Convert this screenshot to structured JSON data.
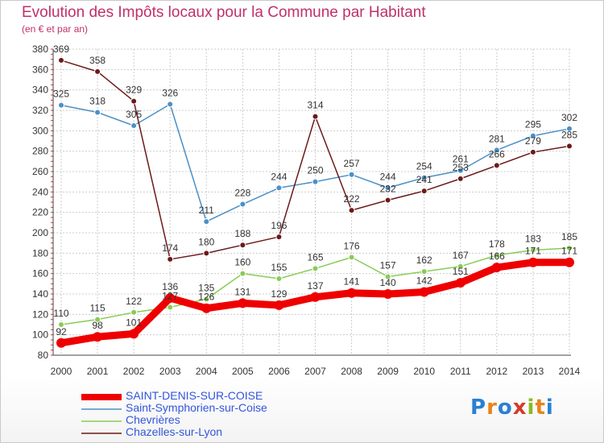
{
  "title": "Evolution des Impôts locaux pour la Commune par Habitant",
  "subtitle": "(en € et par an)",
  "logo": "Proxiti",
  "chart_data": {
    "type": "line",
    "x": [
      "2000",
      "2001",
      "2002",
      "2003",
      "2004",
      "2005",
      "2006",
      "2007",
      "2008",
      "2009",
      "2010",
      "2011",
      "2012",
      "2013",
      "2014"
    ],
    "ylim": [
      80,
      380
    ],
    "yticks": [
      80,
      100,
      120,
      140,
      160,
      180,
      200,
      220,
      240,
      260,
      280,
      300,
      320,
      340,
      360,
      380
    ],
    "grid": true,
    "legend_position": "bottom-left",
    "series": [
      {
        "name": "SAINT-DENIS-SUR-COISE",
        "color": "#ee0000",
        "values": [
          92,
          98,
          101,
          136,
          126,
          131,
          129,
          137,
          141,
          140,
          142,
          151,
          166,
          171,
          171
        ],
        "labels": [
          "92",
          "98",
          "101",
          "136",
          "126",
          "131",
          "129",
          "137",
          "141",
          "140",
          "142",
          "151",
          "166",
          "171",
          "171"
        ]
      },
      {
        "name": "Saint-Symphorien-sur-Coise",
        "color": "#4a90c8",
        "values": [
          325,
          318,
          305,
          326,
          211,
          228,
          244,
          250,
          257,
          244,
          254,
          261,
          281,
          295,
          302
        ],
        "labels": [
          "325",
          "318",
          "305",
          "326",
          "211",
          "228",
          "244",
          "250",
          "257",
          "244",
          "254",
          "261",
          "281",
          "295",
          "302"
        ]
      },
      {
        "name": "Chevrières",
        "color": "#88cc55",
        "values": [
          110,
          115,
          122,
          127,
          135,
          160,
          155,
          165,
          176,
          157,
          162,
          167,
          178,
          183,
          185
        ],
        "labels": [
          "110",
          "115",
          "122",
          "127",
          "135",
          "160",
          "155",
          "165",
          "176",
          "157",
          "162",
          "167",
          "178",
          "183",
          "185"
        ]
      },
      {
        "name": "Chazelles-sur-Lyon",
        "color": "#6b1a1a",
        "values": [
          369,
          358,
          329,
          174,
          180,
          188,
          196,
          314,
          222,
          232,
          241,
          253,
          266,
          279,
          285
        ],
        "labels": [
          "369",
          "358",
          "329",
          "174",
          "180",
          "188",
          "196",
          "314",
          "222",
          "232",
          "241",
          "253",
          "266",
          "279",
          "285"
        ]
      }
    ]
  }
}
